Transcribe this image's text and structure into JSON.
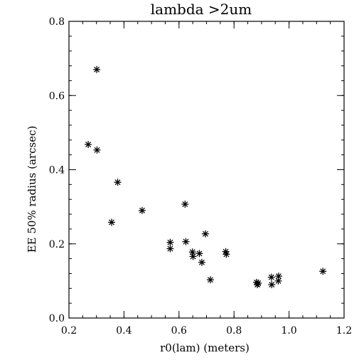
{
  "chart_data": {
    "type": "scatter",
    "title": "lambda >2um",
    "xlabel": "r0(lam) (meters)",
    "ylabel": "EE 50% radius (arcsec)",
    "xlim": [
      0.2,
      1.2
    ],
    "ylim": [
      0.0,
      0.8
    ],
    "xticks": [
      0.2,
      0.4,
      0.6,
      0.8,
      1.0,
      1.2
    ],
    "yticks": [
      0.0,
      0.2,
      0.4,
      0.6,
      0.8
    ],
    "xtick_labels": [
      "0.2",
      "0.4",
      "0.6",
      "0.8",
      "1.0",
      "1.2"
    ],
    "ytick_labels": [
      "0.0",
      "0.2",
      "0.4",
      "0.6",
      "0.8"
    ],
    "x_minor_step": 0.05,
    "y_minor_step": 0.04,
    "marker": "asterisk",
    "grid": false,
    "series": [
      {
        "points": [
          [
            0.27,
            0.468
          ],
          [
            0.301,
            0.67
          ],
          [
            0.302,
            0.453
          ],
          [
            0.355,
            0.258
          ],
          [
            0.377,
            0.366
          ],
          [
            0.466,
            0.29
          ],
          [
            0.568,
            0.204
          ],
          [
            0.568,
            0.187
          ],
          [
            0.622,
            0.307
          ],
          [
            0.625,
            0.206
          ],
          [
            0.649,
            0.178
          ],
          [
            0.651,
            0.166
          ],
          [
            0.674,
            0.174
          ],
          [
            0.683,
            0.15
          ],
          [
            0.696,
            0.227
          ],
          [
            0.714,
            0.103
          ],
          [
            0.77,
            0.179
          ],
          [
            0.772,
            0.172
          ],
          [
            0.882,
            0.096
          ],
          [
            0.885,
            0.09
          ],
          [
            0.888,
            0.094
          ],
          [
            0.936,
            0.11
          ],
          [
            0.937,
            0.09
          ],
          [
            0.961,
            0.1
          ],
          [
            0.962,
            0.113
          ],
          [
            1.123,
            0.126
          ]
        ]
      }
    ]
  }
}
